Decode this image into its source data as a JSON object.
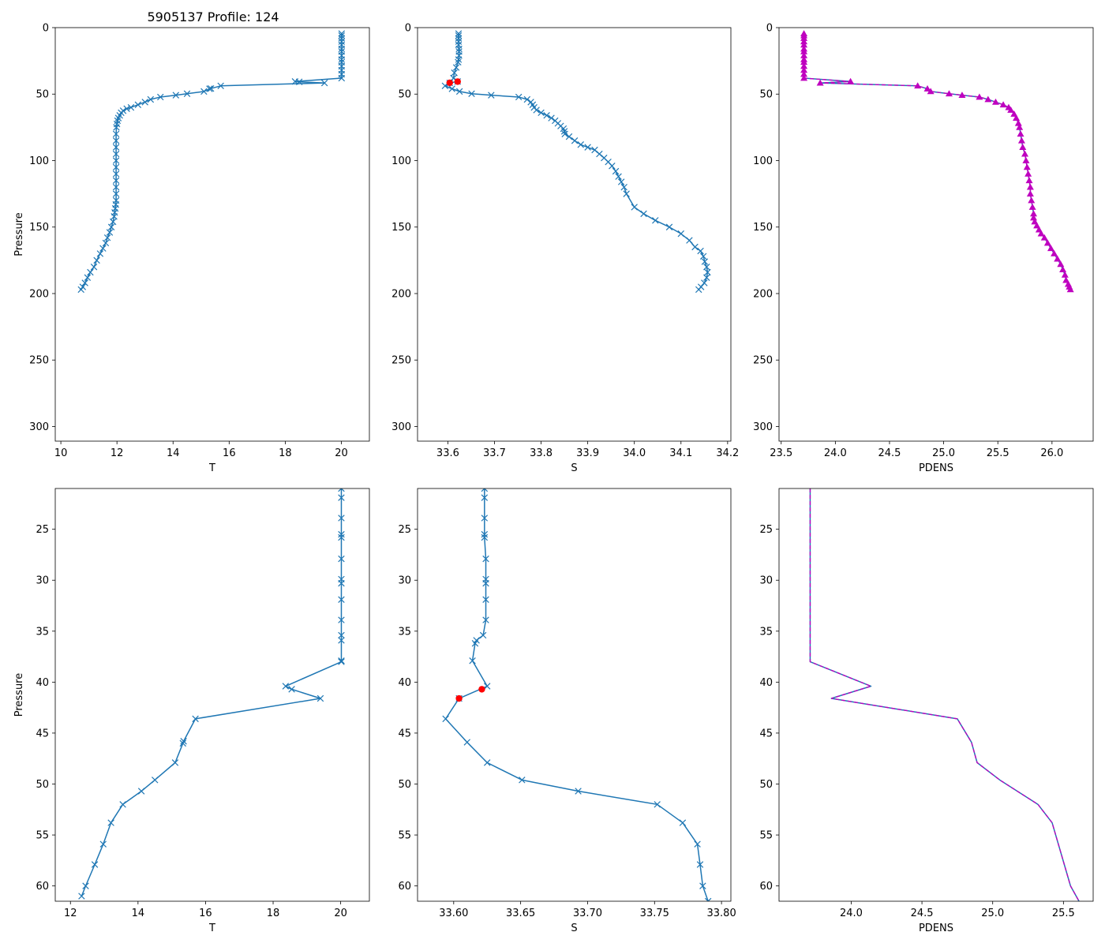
{
  "figure_title": "5905137 Profile: 124",
  "colors": {
    "line": "#1f77b4",
    "pdens": "#bf00bf",
    "flag": "#ff0000",
    "axis": "#000000"
  },
  "chart_data": [
    {
      "id": "top_T",
      "type": "line",
      "xlabel": "T",
      "ylabel": "Pressure",
      "xlim": [
        9.8,
        21.0
      ],
      "ylim": [
        311,
        0
      ],
      "xticks": [
        "10",
        "12",
        "14",
        "16",
        "18",
        "20"
      ],
      "yticks": [
        "0",
        "50",
        "100",
        "150",
        "200",
        "250",
        "300"
      ],
      "series": [
        {
          "name": "T",
          "marker": "x",
          "x": [
            20.01,
            20.01,
            20.01,
            20.01,
            20.01,
            20.01,
            20.01,
            20.01,
            20.01,
            20.01,
            20.01,
            20.01,
            20.01,
            20.01,
            18.35,
            18.5,
            19.4,
            15.7,
            15.35,
            15.3,
            15.1,
            14.5,
            14.1,
            13.55,
            13.2,
            13.0,
            12.75,
            12.5,
            12.35,
            12.22,
            12.15,
            12.1,
            12.05,
            12.02,
            12.0,
            11.98,
            11.97,
            11.97,
            11.97,
            11.97,
            11.97,
            11.97,
            11.97,
            11.97,
            11.97,
            11.97,
            11.97,
            11.96,
            11.94,
            11.92,
            11.9,
            11.86,
            11.8,
            11.74,
            11.66,
            11.6,
            11.5,
            11.4,
            11.28,
            11.18,
            11.05,
            10.95,
            10.86,
            10.78,
            10.72
          ],
          "y": [
            4.5,
            6,
            8,
            10.5,
            13,
            16,
            18,
            21,
            24,
            26,
            29,
            32,
            35,
            38,
            40.5,
            40.8,
            41.6,
            43.8,
            45.8,
            46,
            48,
            49.7,
            50.8,
            52.2,
            54,
            56,
            58,
            60,
            61,
            62.5,
            64,
            66,
            68,
            70,
            72.5,
            75,
            80,
            85,
            90,
            95,
            100,
            105,
            110,
            115,
            120,
            125,
            130,
            133,
            136,
            139,
            142,
            146,
            150,
            154,
            158,
            162,
            166,
            170,
            175,
            180,
            184,
            188,
            192,
            195,
            197
          ]
        }
      ],
      "flags": []
    },
    {
      "id": "top_S",
      "type": "line",
      "xlabel": "S",
      "ylabel": "",
      "xlim": [
        33.535,
        34.207
      ],
      "ylim": [
        311,
        0
      ],
      "xticks": [
        "33.6",
        "33.7",
        "33.8",
        "33.9",
        "34.0",
        "34.1",
        "34.2"
      ],
      "yticks": [
        "0",
        "50",
        "100",
        "150",
        "200",
        "250",
        "300"
      ],
      "series": [
        {
          "name": "S",
          "marker": "x",
          "x": [
            33.623,
            33.623,
            33.623,
            33.623,
            33.623,
            33.624,
            33.624,
            33.624,
            33.623,
            33.622,
            33.618,
            33.614,
            33.612,
            33.621,
            33.604,
            33.594,
            33.609,
            33.625,
            33.651,
            33.693,
            33.752,
            33.77,
            33.778,
            33.782,
            33.785,
            33.79,
            33.8,
            33.812,
            33.822,
            33.83,
            33.836,
            33.842,
            33.848,
            33.85,
            33.851,
            33.86,
            33.872,
            33.885,
            33.9,
            33.915,
            33.925,
            33.935,
            33.944,
            33.952,
            33.96,
            33.966,
            33.972,
            33.978,
            33.983,
            34.0,
            34.02,
            34.045,
            34.075,
            34.1,
            34.118,
            34.13,
            34.142,
            34.148,
            34.151,
            34.155,
            34.157,
            34.155,
            34.15,
            34.143,
            34.138
          ],
          "y": [
            4.5,
            6,
            8,
            10.5,
            13,
            16,
            18,
            21,
            24,
            26,
            30,
            34,
            38,
            40.5,
            41.6,
            43.8,
            46,
            48,
            49.7,
            50.8,
            52.2,
            54,
            56,
            58,
            60,
            62,
            64,
            66,
            68,
            70,
            72,
            74,
            76,
            78,
            80,
            82,
            85,
            88,
            90,
            92,
            95,
            98,
            101,
            104,
            108,
            112,
            116,
            120,
            125,
            135,
            140,
            145,
            150,
            155,
            160,
            165,
            168,
            172,
            176,
            180,
            184,
            188,
            192,
            195,
            197
          ]
        }
      ],
      "flags": [
        {
          "x": [
            33.621,
            33.604
          ],
          "y": [
            40.6,
            41.5
          ]
        }
      ]
    },
    {
      "id": "top_PDENS",
      "type": "line",
      "xlabel": "PDENS",
      "ylabel": "",
      "xlim": [
        23.48,
        26.38
      ],
      "ylim": [
        311,
        0
      ],
      "xticks": [
        "23.5",
        "24.0",
        "24.5",
        "25.0",
        "25.5",
        "26.0"
      ],
      "yticks": [
        "0",
        "50",
        "100",
        "150",
        "200",
        "250",
        "300"
      ],
      "series": [
        {
          "name": "PDENS",
          "marker": "^",
          "x": [
            23.71,
            23.71,
            23.71,
            23.71,
            23.71,
            23.71,
            23.71,
            23.71,
            23.71,
            23.71,
            23.71,
            23.71,
            23.71,
            23.71,
            24.14,
            23.86,
            24.76,
            24.85,
            24.88,
            25.05,
            25.17,
            25.33,
            25.41,
            25.48,
            25.55,
            25.6,
            25.62,
            25.65,
            25.67,
            25.69,
            25.7,
            25.71,
            25.72,
            25.73,
            25.75,
            25.76,
            25.77,
            25.78,
            25.79,
            25.8,
            25.8,
            25.81,
            25.82,
            25.83,
            25.83,
            25.84,
            25.86,
            25.88,
            25.9,
            25.93,
            25.96,
            25.99,
            26.02,
            26.05,
            26.08,
            26.1,
            26.12,
            26.13,
            26.15,
            26.16,
            26.17
          ],
          "y": [
            4.5,
            6,
            8,
            10.5,
            13,
            16,
            18,
            21,
            24,
            26,
            29,
            32,
            35,
            38,
            40.5,
            41.6,
            43.8,
            46,
            48,
            49.7,
            50.8,
            52.2,
            54,
            56,
            58,
            60,
            62,
            65,
            68,
            72,
            75,
            80,
            85,
            90,
            95,
            100,
            105,
            110,
            115,
            120,
            125,
            130,
            135,
            140,
            143,
            146,
            149,
            152,
            155,
            158,
            162,
            166,
            170,
            174,
            178,
            182,
            186,
            190,
            193,
            195,
            197
          ]
        }
      ],
      "flags": []
    },
    {
      "id": "bottom_T",
      "type": "line",
      "xlabel": "T",
      "ylabel": "Pressure",
      "xlim": [
        11.55,
        20.85
      ],
      "ylim": [
        61.5,
        21.0
      ],
      "xticks": [
        "12",
        "14",
        "16",
        "18",
        "20"
      ],
      "yticks": [
        "25",
        "30",
        "35",
        "40",
        "45",
        "50",
        "55",
        "60"
      ],
      "series": [
        {
          "name": "T",
          "marker": "x",
          "x": [
            20.02,
            20.02,
            20.02,
            20.02,
            20.02,
            20.02,
            20.02,
            20.02,
            20.02,
            20.02,
            20.02,
            20.02,
            20.02,
            20.02,
            18.37,
            18.55,
            19.4,
            15.7,
            15.35,
            15.33,
            15.1,
            14.5,
            14.1,
            13.55,
            13.2,
            12.97,
            12.72,
            12.45,
            12.33
          ],
          "y": [
            21.0,
            21.9,
            23.9,
            25.5,
            25.8,
            27.9,
            29.9,
            30.3,
            31.9,
            33.9,
            35.4,
            35.9,
            37.9,
            38.0,
            40.4,
            40.7,
            41.6,
            43.6,
            45.8,
            46.0,
            47.9,
            49.6,
            50.7,
            52.0,
            53.8,
            55.9,
            57.9,
            60.0,
            61.0
          ]
        }
      ],
      "flags": []
    },
    {
      "id": "bottom_S",
      "type": "line",
      "xlabel": "S",
      "ylabel": "",
      "xlim": [
        33.573,
        33.807
      ],
      "ylim": [
        61.5,
        21.0
      ],
      "xticks": [
        "33.60",
        "33.65",
        "33.70",
        "33.75",
        "33.80"
      ],
      "yticks": [
        "25",
        "30",
        "35",
        "40",
        "45",
        "50",
        "55",
        "60"
      ],
      "series": [
        {
          "name": "S",
          "marker": "x",
          "x": [
            33.623,
            33.623,
            33.623,
            33.623,
            33.623,
            33.624,
            33.624,
            33.624,
            33.624,
            33.624,
            33.622,
            33.617,
            33.616,
            33.614,
            33.625,
            33.604,
            33.594,
            33.61,
            33.625,
            33.651,
            33.693,
            33.752,
            33.771,
            33.782,
            33.784,
            33.786,
            33.79
          ],
          "y": [
            21.0,
            21.9,
            23.9,
            25.5,
            25.8,
            27.9,
            29.9,
            30.3,
            31.9,
            33.9,
            35.4,
            35.9,
            36.2,
            37.9,
            40.4,
            41.6,
            43.6,
            45.9,
            47.9,
            49.6,
            50.7,
            52.0,
            53.8,
            55.9,
            57.9,
            60.0,
            61.5
          ]
        }
      ],
      "flags": [
        {
          "x": [
            33.621,
            33.604
          ],
          "y": [
            40.7,
            41.6
          ]
        }
      ]
    },
    {
      "id": "bottom_PDENS",
      "type": "line",
      "xlabel": "PDENS",
      "ylabel": "",
      "xlim": [
        23.49,
        25.71
      ],
      "ylim": [
        61.5,
        21.0
      ],
      "xticks": [
        "24.0",
        "24.5",
        "25.0",
        "25.5"
      ],
      "yticks": [
        "25",
        "30",
        "35",
        "40",
        "45",
        "50",
        "55",
        "60"
      ],
      "series": [
        {
          "name": "PDENS",
          "marker": "",
          "x": [
            23.71,
            23.71,
            23.71,
            24.14,
            23.86,
            24.75,
            24.85,
            24.89,
            25.05,
            25.32,
            25.42,
            25.55,
            25.61
          ],
          "y": [
            21.0,
            30.0,
            38.0,
            40.4,
            41.6,
            43.6,
            45.9,
            47.9,
            49.6,
            52.0,
            53.8,
            60.0,
            61.5
          ]
        }
      ],
      "flags": []
    }
  ]
}
